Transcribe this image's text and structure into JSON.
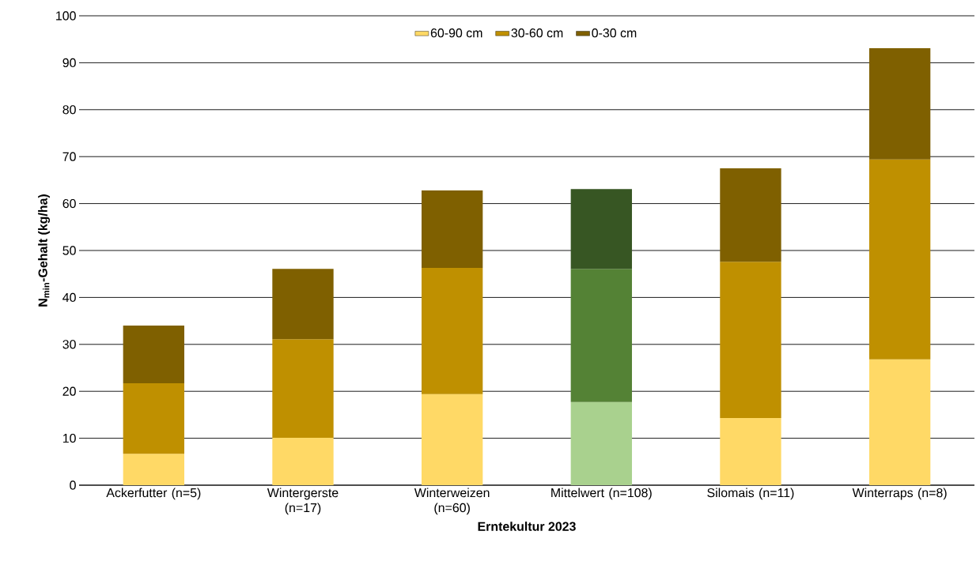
{
  "chart_data": {
    "type": "bar",
    "stacked": true,
    "xlabel": "Erntekultur 2023",
    "ylabel": "N$_{min}$-Gehalt (kg/ha)",
    "categories": [
      "Ackerfutter (n=5)",
      "Wintergerste (n=17)",
      "Winterweizen (n=60)",
      "Mittelwert (n=108)",
      "Silomais (n=11)",
      "Winterraps (n=8)"
    ],
    "series": [
      {
        "name": "60-90 cm",
        "color": "#ffd966",
        "colors": [
          "#ffd966",
          "#ffd966",
          "#ffd966",
          "#a9d18e",
          "#ffd966",
          "#ffd966"
        ],
        "values": [
          6.7,
          10.1,
          19.4,
          17.7,
          14.3,
          26.8
        ]
      },
      {
        "name": "30-60 cm",
        "color": "#bf9000",
        "colors": [
          "#bf9000",
          "#bf9000",
          "#bf9000",
          "#548235",
          "#bf9000",
          "#bf9000"
        ],
        "values": [
          15.0,
          21.0,
          26.9,
          28.4,
          33.3,
          42.6
        ]
      },
      {
        "name": "0-30 cm",
        "color": "#7f6000",
        "colors": [
          "#7f6000",
          "#7f6000",
          "#7f6000",
          "#375623",
          "#7f6000",
          "#7f6000"
        ],
        "values": [
          12.3,
          15.0,
          16.5,
          17.0,
          19.9,
          23.7
        ]
      }
    ],
    "ylim": [
      0,
      100
    ],
    "yticks": [
      0,
      10,
      20,
      30,
      40,
      50,
      60,
      70,
      80,
      90,
      100
    ],
    "grid": "y",
    "legend": "top"
  }
}
